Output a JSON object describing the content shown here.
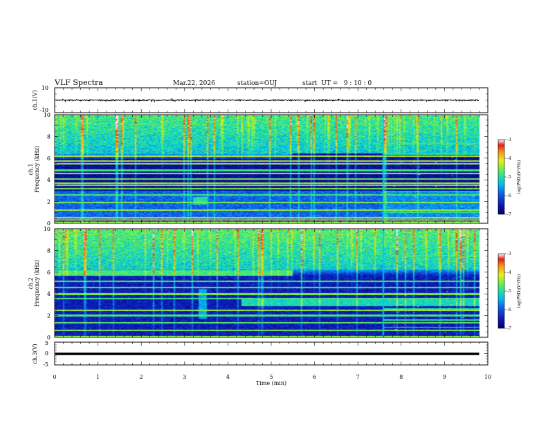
{
  "header": {
    "title": "VLF Spectra",
    "date": "Mar.22, 2026",
    "station": "station=OUJ",
    "start": "start  UT =   9 : 10 : 0"
  },
  "chart_data": [
    {
      "type": "line",
      "panel": "waveform-ch1",
      "ylabel": "ch.1(V)",
      "ylim": [
        -10,
        10
      ],
      "yticks": [
        "10",
        "-10"
      ],
      "xlim": [
        0,
        10
      ],
      "data_extent_min": 9.8,
      "baseline": 0.0,
      "amplitude": 1.2,
      "color": "#000000"
    },
    {
      "type": "heatmap",
      "panel": "spectrogram-ch1",
      "ylabel_top": "ch.1",
      "ylabel": "Frequency (kHz)",
      "ylim": [
        0,
        10
      ],
      "yticks": [
        "0",
        "2",
        "4",
        "6",
        "8",
        "10"
      ],
      "xlim": [
        0,
        10
      ],
      "data_extent_min": 9.8,
      "colorbar": {
        "label": "log(PSD)(V²/Hz)",
        "ticks": [
          "-3",
          "-4",
          "-5",
          "-6",
          "-7"
        ],
        "range": [
          -7,
          -3
        ],
        "scale": "rainbow"
      },
      "features": {
        "background_level": -6.6,
        "high_band_kHz": [
          6.4,
          10
        ],
        "high_band_level": -5.0,
        "band_edge_kHz": 6.0,
        "band_edge_shift_min": 5.5,
        "band_edge_after_kHz": 6.5,
        "low_noise_kHz": [
          0,
          3
        ],
        "low_noise_level": -5.9,
        "lines_kHz": [
          0.5,
          1.2,
          1.9,
          2.6,
          3.2,
          3.5,
          3.7,
          4.1,
          4.6,
          4.9,
          5.5,
          5.8,
          6.2
        ],
        "strong_line_kHz": 0.3,
        "change_min": 7.6
      }
    },
    {
      "type": "heatmap",
      "panel": "spectrogram-ch2",
      "ylabel_top": "ch.2",
      "ylabel": "Frequency (kHz)",
      "ylim": [
        0,
        10
      ],
      "yticks": [
        "0",
        "2",
        "4",
        "6",
        "8",
        "10"
      ],
      "xlim": [
        0,
        10
      ],
      "data_extent_min": 9.8,
      "colorbar": {
        "label": "log(PSD)(V²/Hz)",
        "ticks": [
          "-3",
          "-4",
          "-5",
          "-6",
          "-7"
        ],
        "range": [
          -7,
          -3
        ],
        "scale": "rainbow"
      },
      "features": {
        "background_level": -6.5,
        "high_band_kHz": [
          6.3,
          10
        ],
        "high_band_level": -4.9,
        "hiss_band_kHz": [
          5.7,
          6.2
        ],
        "hiss_band_min": [
          0,
          5.5
        ],
        "hiss_level": -4.8,
        "mid_band_kHz": [
          2.9,
          3.5
        ],
        "mid_band_min": [
          4.3,
          9.8
        ],
        "mid_band_level": -5.1,
        "lines_kHz": [
          0.6,
          1.3,
          2.0,
          2.5,
          3.6,
          4.0,
          4.6,
          5.2
        ],
        "change_min": 7.6
      }
    },
    {
      "type": "line",
      "panel": "waveform-ch3",
      "ylabel": "ch.3(V)",
      "ylim": [
        -5,
        5
      ],
      "yticks": [
        "5",
        "0",
        "-5"
      ],
      "xlim": [
        0,
        10
      ],
      "data_extent_min": 9.8,
      "baseline": 0.0,
      "amplitude": 0.3,
      "color": "#000000"
    }
  ],
  "x_axis": {
    "label": "Time (min)",
    "ticks": [
      "0",
      "1",
      "2",
      "3",
      "4",
      "5",
      "6",
      "7",
      "8",
      "9",
      "10"
    ]
  }
}
